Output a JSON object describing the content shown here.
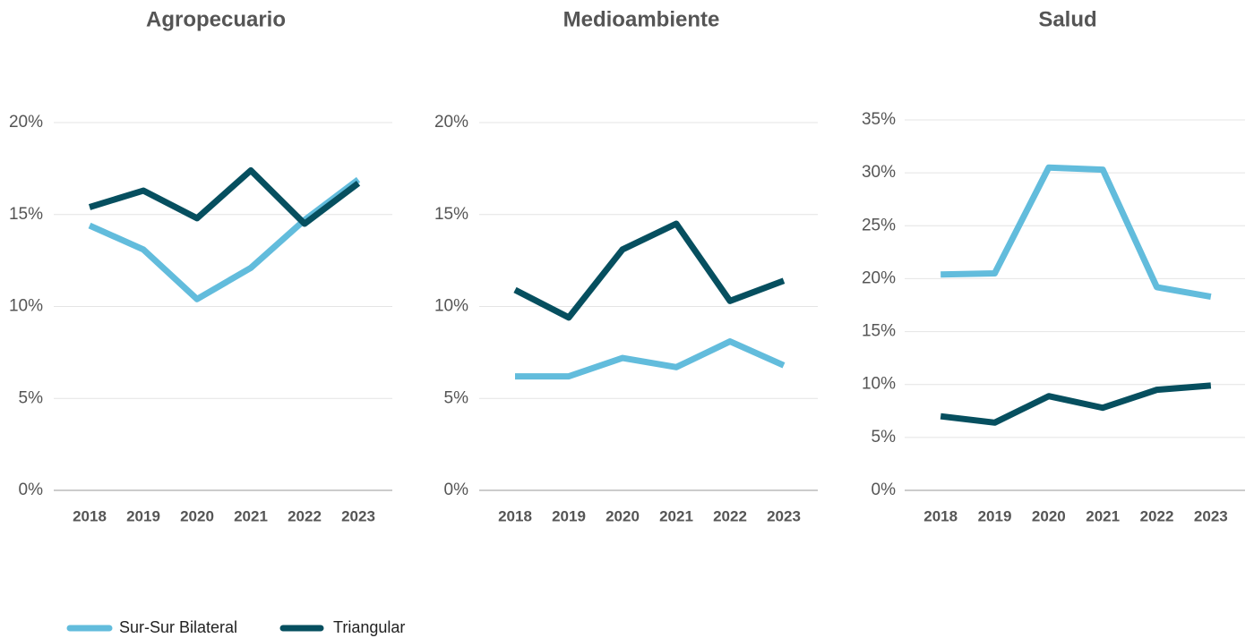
{
  "chart_data": [
    {
      "type": "line",
      "title": "Agropecuario",
      "categories": [
        "2018",
        "2019",
        "2020",
        "2021",
        "2022",
        "2023"
      ],
      "series": [
        {
          "name": "Sur-Sur Bilateral",
          "color": "#62bcdc",
          "values": [
            14.4,
            13.1,
            10.4,
            12.1,
            14.7,
            16.9
          ]
        },
        {
          "name": "Triangular",
          "color": "#064f5f",
          "values": [
            15.4,
            16.3,
            14.8,
            17.4,
            14.5,
            16.7
          ]
        }
      ],
      "ylim": [
        0,
        20
      ],
      "yticks": [
        {
          "value": 0,
          "label": "0%"
        },
        {
          "value": 5,
          "label": "5%"
        },
        {
          "value": 10,
          "label": "10%"
        },
        {
          "value": 15,
          "label": "15%"
        },
        {
          "value": 20,
          "label": "20%"
        }
      ],
      "grid": true
    },
    {
      "type": "line",
      "title": "Medioambiente",
      "categories": [
        "2018",
        "2019",
        "2020",
        "2021",
        "2022",
        "2023"
      ],
      "series": [
        {
          "name": "Sur-Sur Bilateral",
          "color": "#62bcdc",
          "values": [
            6.2,
            6.2,
            7.2,
            6.7,
            8.1,
            6.8
          ]
        },
        {
          "name": "Triangular",
          "color": "#064f5f",
          "values": [
            10.9,
            9.4,
            13.1,
            14.5,
            10.3,
            11.4
          ]
        }
      ],
      "ylim": [
        0,
        20
      ],
      "yticks": [
        {
          "value": 0,
          "label": "0%"
        },
        {
          "value": 5,
          "label": "5%"
        },
        {
          "value": 10,
          "label": "10%"
        },
        {
          "value": 15,
          "label": "15%"
        },
        {
          "value": 20,
          "label": "20%"
        }
      ],
      "grid": true
    },
    {
      "type": "line",
      "title": "Salud",
      "categories": [
        "2018",
        "2019",
        "2020",
        "2021",
        "2022",
        "2023"
      ],
      "series": [
        {
          "name": "Sur-Sur Bilateral",
          "color": "#62bcdc",
          "values": [
            20.4,
            20.5,
            30.5,
            30.3,
            19.2,
            18.3
          ]
        },
        {
          "name": "Triangular",
          "color": "#064f5f",
          "values": [
            7.0,
            6.4,
            8.9,
            7.8,
            9.5,
            9.9
          ]
        }
      ],
      "ylim": [
        0,
        35
      ],
      "yticks": [
        {
          "value": 0,
          "label": "0%"
        },
        {
          "value": 5,
          "label": "5%"
        },
        {
          "value": 10,
          "label": "10%"
        },
        {
          "value": 15,
          "label": "15%"
        },
        {
          "value": 20,
          "label": "20%"
        },
        {
          "value": 25,
          "label": "25%"
        },
        {
          "value": 30,
          "label": "30%"
        },
        {
          "value": 35,
          "label": "35%"
        }
      ],
      "grid": true
    }
  ]
}
